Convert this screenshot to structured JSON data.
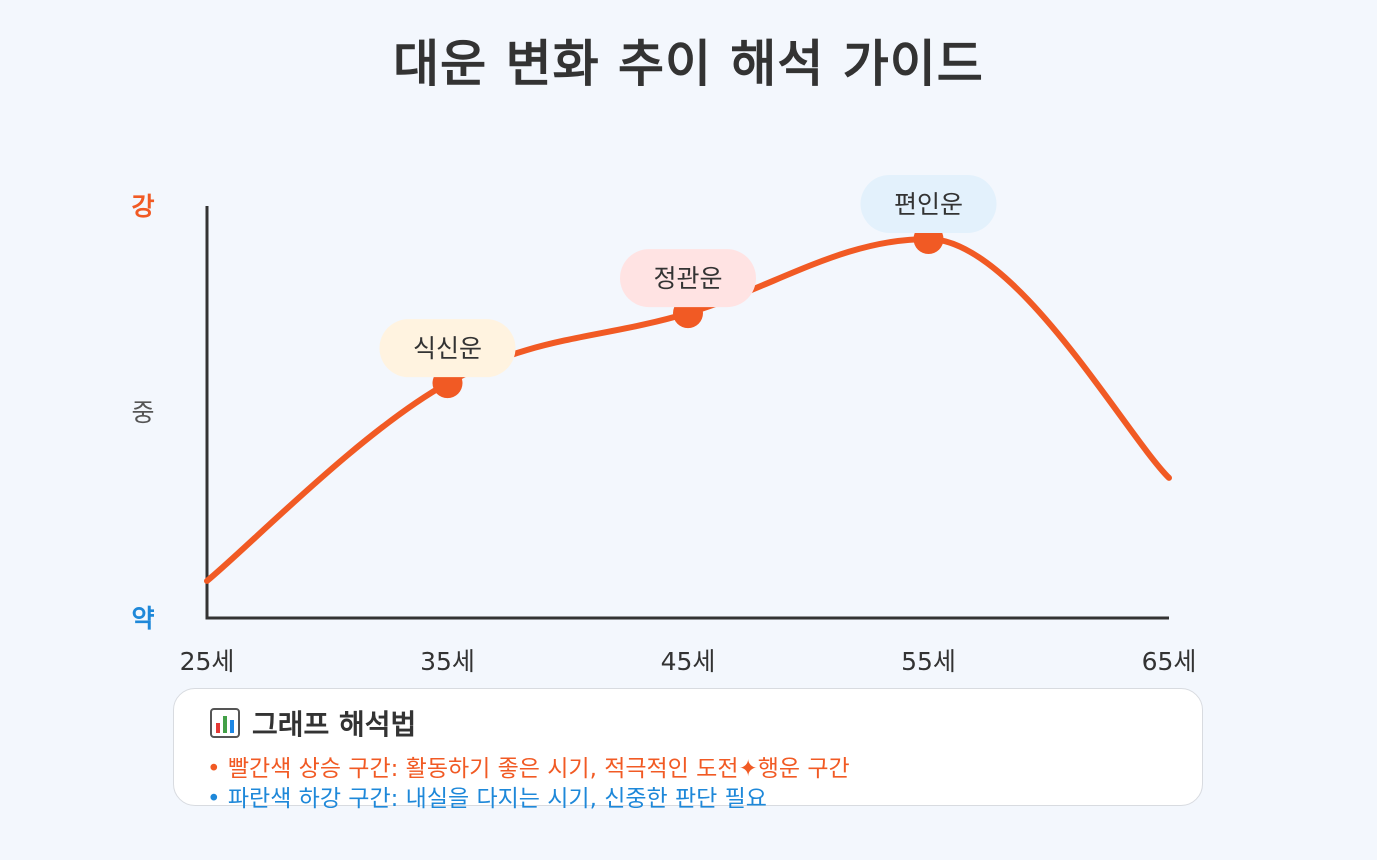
{
  "title": "대운 변화 추이 해석 가이드",
  "colors": {
    "line": "#f15a24",
    "strong": "#f15a24",
    "weak": "#1e88d9",
    "axis": "#333333",
    "legend_up": "#f15a24",
    "legend_down": "#1e88d9"
  },
  "chart_data": {
    "type": "line",
    "title": "대운 변화 추이 해석 가이드",
    "x_unit": "세",
    "x_ticks": [
      "25세",
      "35세",
      "45세",
      "55세",
      "65세"
    ],
    "xlim": [
      25,
      65
    ],
    "y_levels": [
      {
        "label": "약",
        "value": 0
      },
      {
        "label": "중",
        "value": 0.5
      },
      {
        "label": "강",
        "value": 1
      }
    ],
    "ylim": [
      0,
      1
    ],
    "series": [
      {
        "points": [
          {
            "x": 25,
            "y": 0.09
          },
          {
            "x": 35,
            "y": 0.57
          },
          {
            "x": 45,
            "y": 0.74
          },
          {
            "x": 55,
            "y": 0.92
          },
          {
            "x": 65,
            "y": 0.34
          }
        ]
      }
    ],
    "annotations": [
      {
        "x": 35,
        "y": 0.57,
        "label": "식신운",
        "bg": "#fff3e0"
      },
      {
        "x": 45,
        "y": 0.74,
        "label": "정관운",
        "bg": "#ffe3e3"
      },
      {
        "x": 55,
        "y": 0.92,
        "label": "편인운",
        "bg": "#e3f1fc"
      }
    ]
  },
  "legend": {
    "icon": "bar-chart-icon",
    "title": "그래프 해석법",
    "items": [
      "• 빨간색 상승 구간: 활동하기 좋은 시기, 적극적인 도전✦행운 구간",
      "• 파란색 하강 구간: 내실을 다지는 시기, 신중한 판단 필요"
    ]
  }
}
